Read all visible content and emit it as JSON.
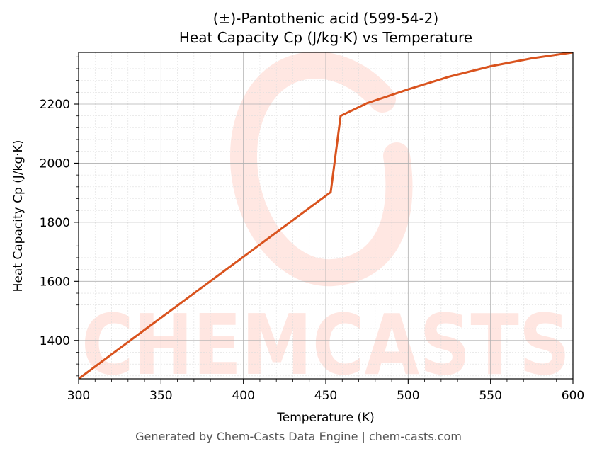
{
  "chart_data": {
    "type": "line",
    "title": "(±)-Pantothenic acid (599-54-2)",
    "subtitle": "Heat Capacity Cp (J/kg·K) vs Temperature",
    "xlabel": "Temperature (K)",
    "ylabel": "Heat Capacity Cp (J/kg·K)",
    "xlim": [
      300,
      600
    ],
    "ylim": [
      1270,
      2375
    ],
    "xticks": [
      300,
      350,
      400,
      450,
      500,
      550,
      600
    ],
    "yticks": [
      1400,
      1600,
      1800,
      2000,
      2200
    ],
    "grid": true,
    "line_color": "#d9531e",
    "series": [
      {
        "x": [
          300,
          350,
          400,
          453,
          459,
          475,
          500,
          525,
          550,
          575,
          600
        ],
        "y": [
          1270,
          1477,
          1683,
          1902,
          2160,
          2203,
          2250,
          2293,
          2328,
          2355,
          2375
        ]
      }
    ]
  },
  "watermark": "CHEMCASTS",
  "footer": "Generated by Chem-Casts Data Engine | chem-casts.com"
}
